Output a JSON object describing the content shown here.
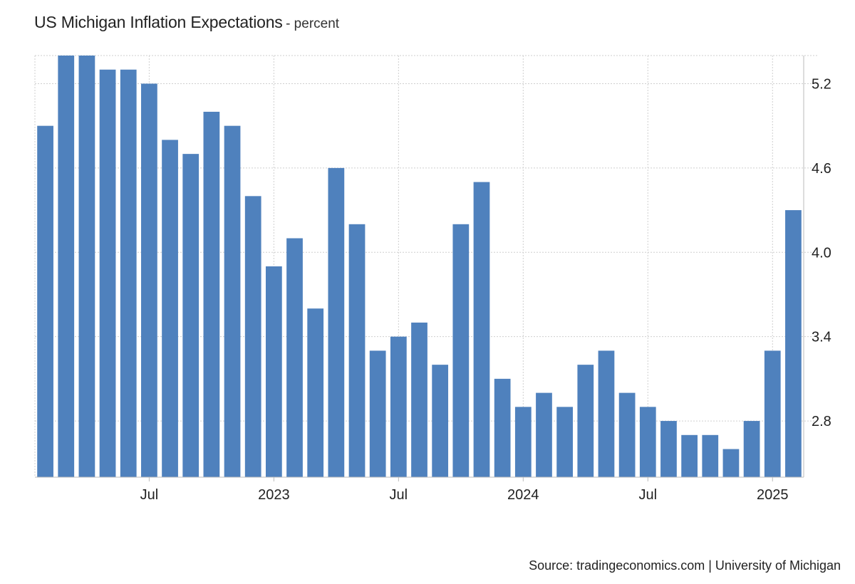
{
  "header": {
    "title": "US Michigan Inflation Expectations",
    "subtitle": "- percent"
  },
  "footer": {
    "source": "Source: tradingeconomics.com | University of Michigan"
  },
  "colors": {
    "bar": "#4f81bd",
    "grid": "#cfcfcf",
    "axis": "#bbbbbb"
  },
  "chart_data": {
    "type": "bar",
    "title": "US Michigan Inflation Expectations",
    "subtitle": "percent",
    "xlabel": "",
    "ylabel": "",
    "ylim": [
      2.4,
      5.4
    ],
    "y_axis_position": "right",
    "grid": true,
    "categories": [
      "2022-02",
      "2022-03",
      "2022-04",
      "2022-05",
      "2022-06",
      "2022-07",
      "2022-08",
      "2022-09",
      "2022-10",
      "2022-11",
      "2022-12",
      "2023-01",
      "2023-02",
      "2023-03",
      "2023-04",
      "2023-05",
      "2023-06",
      "2023-07",
      "2023-08",
      "2023-09",
      "2023-10",
      "2023-11",
      "2023-12",
      "2024-01",
      "2024-02",
      "2024-03",
      "2024-04",
      "2024-05",
      "2024-06",
      "2024-07",
      "2024-08",
      "2024-09",
      "2024-10",
      "2024-11",
      "2024-12",
      "2025-01",
      "2025-02"
    ],
    "series": [
      {
        "name": "US Michigan Inflation Expectations",
        "values": [
          4.9,
          5.4,
          5.4,
          5.3,
          5.3,
          5.2,
          4.8,
          4.7,
          5.0,
          4.9,
          4.4,
          3.9,
          4.1,
          3.6,
          4.6,
          4.2,
          3.3,
          3.4,
          3.5,
          3.2,
          4.2,
          4.5,
          3.1,
          2.9,
          3.0,
          2.9,
          3.2,
          3.3,
          3.0,
          2.9,
          2.8,
          2.7,
          2.7,
          2.6,
          2.8,
          3.3,
          4.3
        ]
      }
    ],
    "y_ticks": [
      {
        "value": 2.8,
        "label": "2.8"
      },
      {
        "value": 3.4,
        "label": "3.4"
      },
      {
        "value": 4.0,
        "label": "4.0"
      },
      {
        "value": 4.6,
        "label": "4.6"
      },
      {
        "value": 5.2,
        "label": "5.2"
      }
    ],
    "x_ticks": [
      {
        "index": 5.5,
        "label": "Jul"
      },
      {
        "index": 11.5,
        "label": "2023"
      },
      {
        "index": 17.5,
        "label": "Jul"
      },
      {
        "index": 23.5,
        "label": "2024"
      },
      {
        "index": 29.5,
        "label": "Jul"
      },
      {
        "index": 35.5,
        "label": "2025"
      }
    ],
    "grid_x_indices": [
      5.5,
      11.5,
      17.5,
      23.5,
      29.5,
      35.5
    ]
  }
}
